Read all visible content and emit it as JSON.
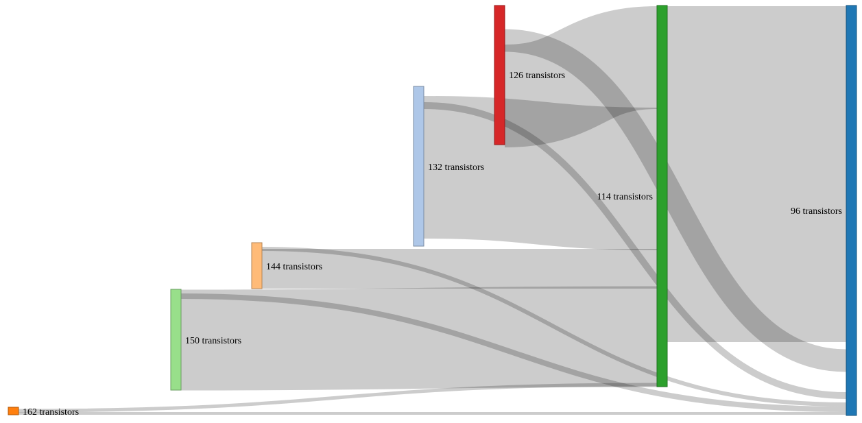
{
  "chart_data": {
    "type": "sankey",
    "nodes": [
      {
        "id": "n162",
        "label": "162 transistors",
        "color": "#ff7f0e"
      },
      {
        "id": "n150",
        "label": "150 transistors",
        "color": "#98df8a"
      },
      {
        "id": "n144",
        "label": "144 transistors",
        "color": "#ffbb78"
      },
      {
        "id": "n132",
        "label": "132 transistors",
        "color": "#aec7e8"
      },
      {
        "id": "n126",
        "label": "126 transistors",
        "color": "#d62728"
      },
      {
        "id": "n114",
        "label": "114 transistors",
        "color": "#2ca02c"
      },
      {
        "id": "n96",
        "label": "96 transistors",
        "color": "#1f77b4"
      }
    ],
    "links": [
      {
        "source": "n162",
        "target": "n96",
        "value": 0.4
      },
      {
        "source": "n162",
        "target": "n114",
        "value": 0.5
      },
      {
        "source": "n150",
        "target": "n96",
        "value": 1.1
      },
      {
        "source": "n150",
        "target": "n114",
        "value": 13.5
      },
      {
        "source": "n144",
        "target": "n96",
        "value": 0.9
      },
      {
        "source": "n144",
        "target": "n114",
        "value": 5.7
      },
      {
        "source": "n132",
        "target": "n96",
        "value": 1.1
      },
      {
        "source": "n132",
        "target": "n114",
        "value": 21.9
      },
      {
        "source": "n126",
        "target": "n96",
        "value": 4.9
      },
      {
        "source": "n126",
        "target": "n114",
        "value": 15.5
      },
      {
        "source": "n114",
        "target": "n96",
        "value": 50
      }
    ]
  }
}
